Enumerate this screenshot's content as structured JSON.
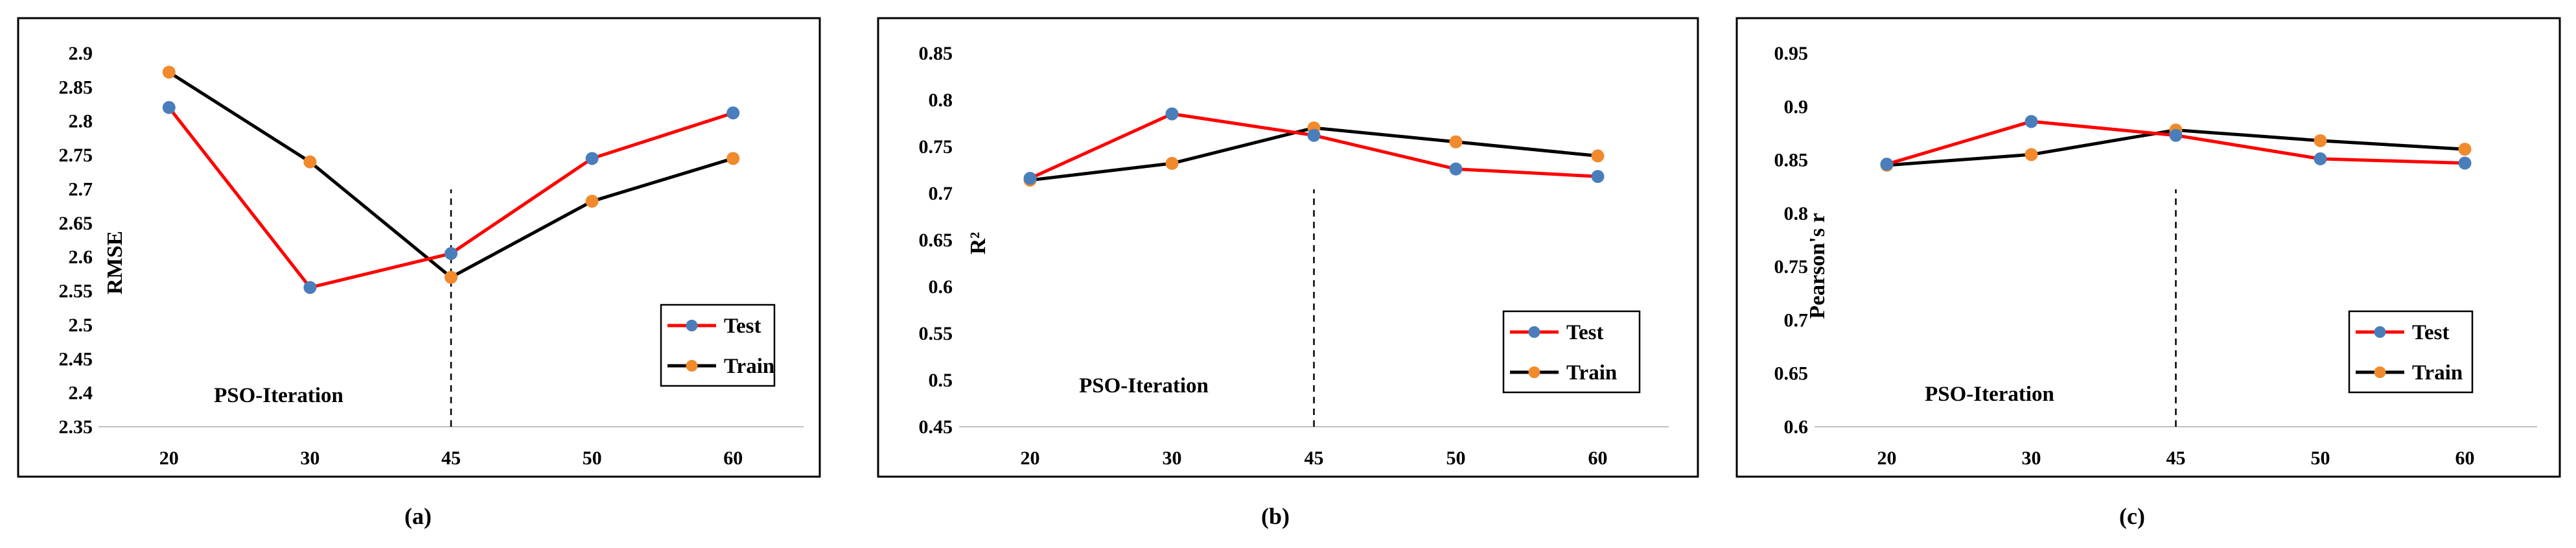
{
  "chart_data": [
    {
      "type": "line",
      "panel": "(a)",
      "categories": [
        "20",
        "30",
        "45",
        "50",
        "60"
      ],
      "series": [
        {
          "name": "Test",
          "values": [
            2.82,
            2.555,
            2.605,
            2.745,
            2.812
          ],
          "line_color": "#ff0000",
          "marker_color": "#4a7ebb"
        },
        {
          "name": "Train",
          "values": [
            2.872,
            2.74,
            2.57,
            2.682,
            2.745
          ],
          "line_color": "#000000",
          "marker_color": "#f08a2c"
        }
      ],
      "ylabel": "RMSE",
      "xlabel": "",
      "ylim": [
        2.35,
        2.9
      ],
      "yticks": [
        "2.35",
        "2.4",
        "2.45",
        "2.5",
        "2.55",
        "2.6",
        "2.65",
        "2.7",
        "2.75",
        "2.8",
        "2.85",
        "2.9"
      ],
      "vline_category": "45",
      "annotation": "PSO-Iteration",
      "legend": "right"
    },
    {
      "type": "line",
      "panel": "(b)",
      "categories": [
        "20",
        "30",
        "45",
        "50",
        "60"
      ],
      "series": [
        {
          "name": "Test",
          "values": [
            0.716,
            0.785,
            0.762,
            0.726,
            0.718
          ],
          "line_color": "#ff0000",
          "marker_color": "#4a7ebb"
        },
        {
          "name": "Train",
          "values": [
            0.714,
            0.732,
            0.77,
            0.755,
            0.74
          ],
          "line_color": "#000000",
          "marker_color": "#f08a2c"
        }
      ],
      "ylabel": "R²",
      "xlabel": "",
      "ylim": [
        0.45,
        0.85
      ],
      "yticks": [
        "0.45",
        "0.5",
        "0.55",
        "0.6",
        "0.65",
        "0.7",
        "0.75",
        "0.8",
        "0.85"
      ],
      "vline_category": "45",
      "annotation": "PSO-Iteration",
      "legend": "right"
    },
    {
      "type": "line",
      "panel": "(c)",
      "categories": [
        "20",
        "30",
        "45",
        "50",
        "60"
      ],
      "series": [
        {
          "name": "Test",
          "values": [
            0.846,
            0.886,
            0.873,
            0.851,
            0.847
          ],
          "line_color": "#ff0000",
          "marker_color": "#4a7ebb"
        },
        {
          "name": "Train",
          "values": [
            0.845,
            0.855,
            0.878,
            0.868,
            0.86
          ],
          "line_color": "#000000",
          "marker_color": "#f08a2c"
        }
      ],
      "ylabel": "Pearson's r",
      "xlabel": "",
      "ylim": [
        0.6,
        0.95
      ],
      "yticks": [
        "0.6",
        "0.65",
        "0.7",
        "0.75",
        "0.8",
        "0.85",
        "0.9",
        "0.95"
      ],
      "vline_category": "45",
      "annotation": "PSO-Iteration",
      "legend": "right"
    }
  ]
}
